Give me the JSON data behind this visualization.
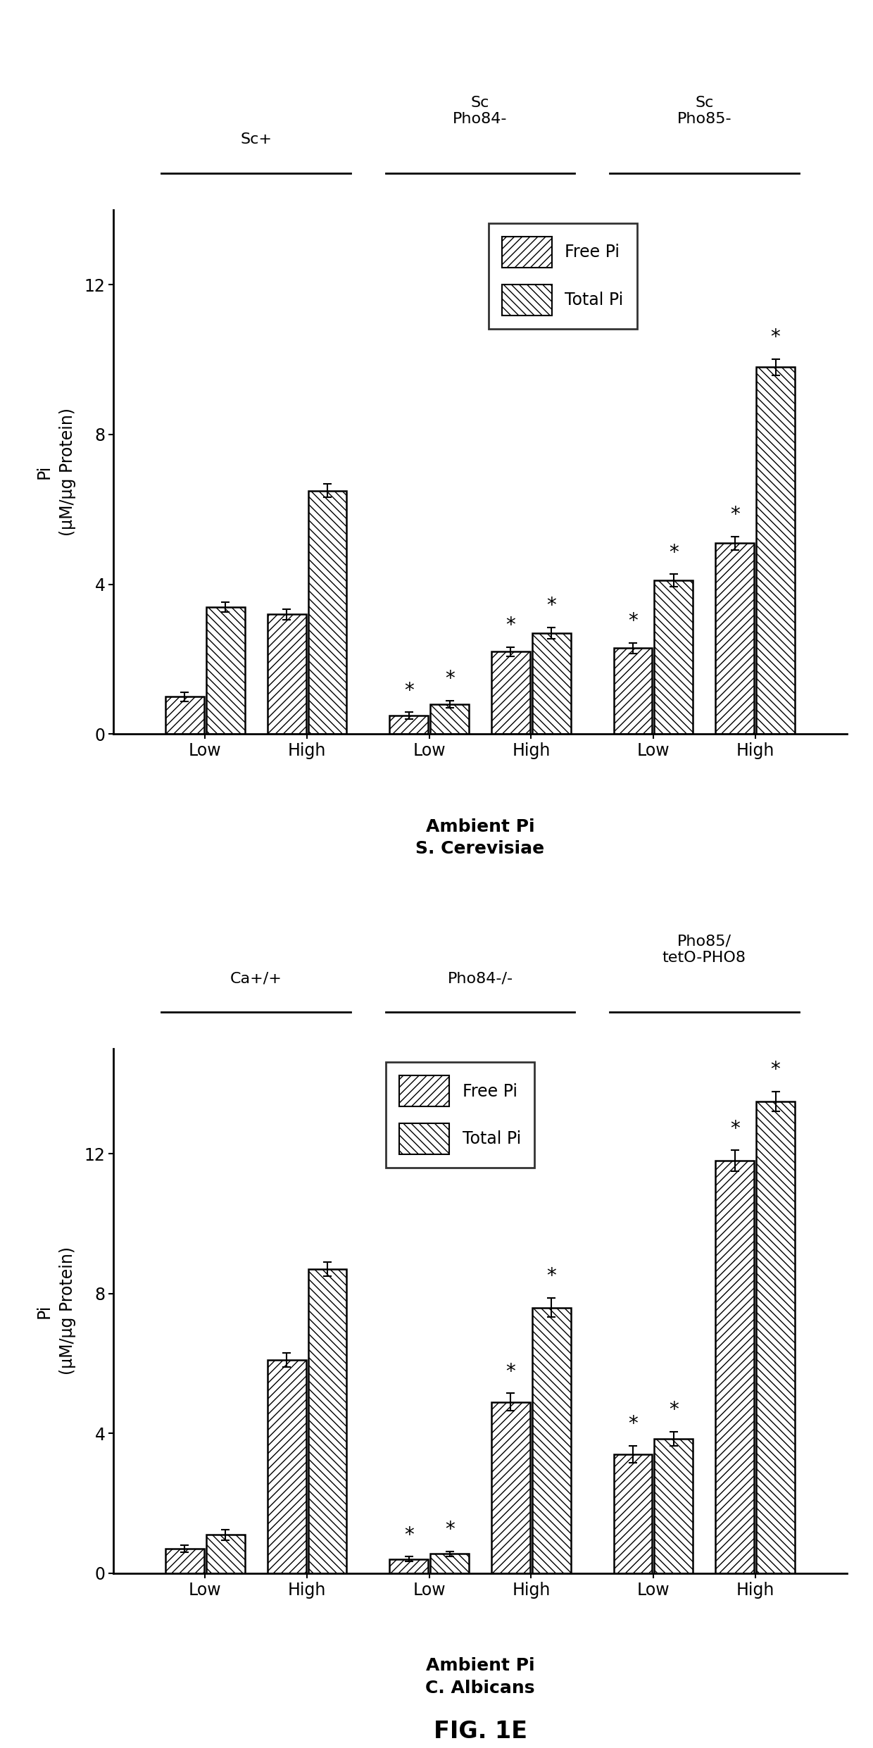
{
  "panel1": {
    "title_line1": "Ambient Pi",
    "title_line2": "S. Cerevisiae",
    "group_labels": [
      "Low",
      "High",
      "Low",
      "High",
      "Low",
      "High"
    ],
    "group_headers": [
      {
        "label": "Sc+"
      },
      {
        "label": "Sc\nPho84-"
      },
      {
        "label": "Sc\nPho85-"
      }
    ],
    "free_pi": [
      1.0,
      3.2,
      0.5,
      2.2,
      2.3,
      5.1
    ],
    "total_pi": [
      3.4,
      6.5,
      0.8,
      2.7,
      4.1,
      9.8
    ],
    "free_pi_err": [
      0.12,
      0.14,
      0.09,
      0.13,
      0.14,
      0.18
    ],
    "total_pi_err": [
      0.13,
      0.18,
      0.1,
      0.15,
      0.17,
      0.22
    ],
    "asterisks_free": [
      false,
      false,
      true,
      true,
      true,
      true
    ],
    "asterisks_total": [
      false,
      false,
      true,
      true,
      true,
      true
    ],
    "ylabel": "Pi\n(μM/μg Protein)",
    "ylim": [
      0,
      14
    ],
    "yticks": [
      0,
      4,
      8,
      12
    ]
  },
  "panel2": {
    "title_line1": "Ambient Pi",
    "title_line2": "C. Albicans",
    "group_labels": [
      "Low",
      "High",
      "Low",
      "High",
      "Low",
      "High"
    ],
    "group_headers": [
      {
        "label": "Ca+/+"
      },
      {
        "label": "Pho84-/-"
      },
      {
        "label": "Pho85/\ntetO-PHO8"
      }
    ],
    "free_pi": [
      0.7,
      6.1,
      0.4,
      4.9,
      3.4,
      11.8
    ],
    "total_pi": [
      1.1,
      8.7,
      0.55,
      7.6,
      3.85,
      13.5
    ],
    "free_pi_err": [
      0.1,
      0.2,
      0.07,
      0.25,
      0.25,
      0.3
    ],
    "total_pi_err": [
      0.15,
      0.2,
      0.08,
      0.28,
      0.2,
      0.28
    ],
    "asterisks_free": [
      false,
      false,
      true,
      true,
      true,
      true
    ],
    "asterisks_total": [
      false,
      false,
      true,
      true,
      true,
      true
    ],
    "ylabel": "Pi\n(μM/μg Protein)",
    "ylim": [
      0,
      15
    ],
    "yticks": [
      0,
      4,
      8,
      12
    ]
  },
  "fig_label": "FIG. 1E",
  "bar_width": 0.38,
  "free_pi_hatch": "///",
  "total_pi_hatch": "\\\\\\",
  "bar_color": "white",
  "bar_edge": "black",
  "legend_labels": [
    "Free Pi",
    "Total Pi"
  ]
}
